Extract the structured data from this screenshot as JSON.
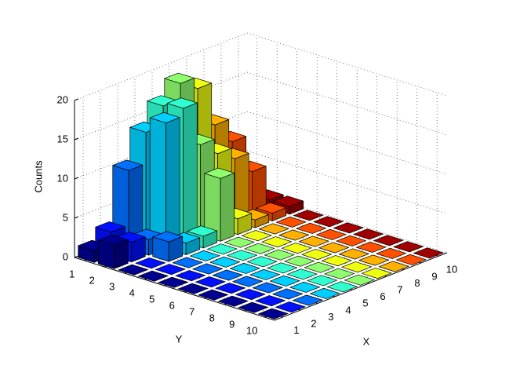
{
  "chart_data": {
    "type": "bar3",
    "xlabel": "X",
    "ylabel": "Y",
    "zlabel": "Counts",
    "xlim": [
      0.5,
      10.5
    ],
    "ylim": [
      0.5,
      10.5
    ],
    "zlim": [
      0,
      20
    ],
    "xticks": [
      1,
      2,
      3,
      4,
      5,
      6,
      7,
      8,
      9,
      10
    ],
    "yticks": [
      1,
      2,
      3,
      4,
      5,
      6,
      7,
      8,
      9,
      10
    ],
    "zticks": [
      0,
      5,
      10,
      15,
      20
    ],
    "grid": true,
    "colors": [
      "#000090",
      "#0010ff",
      "#0070ff",
      "#00d0ff",
      "#30ffcf",
      "#90ff6f",
      "#f0ff0f",
      "#ffb000",
      "#ff5000",
      "#a00000"
    ],
    "values": [
      [
        1.5,
        3,
        10,
        14,
        16.5,
        18.5,
        17,
        11.5,
        8.5,
        1.5
      ],
      [
        3,
        2.5,
        2,
        16,
        17,
        11.5,
        9.5,
        8,
        5.5,
        1
      ],
      [
        0,
        0,
        2.5,
        1.5,
        1.5,
        8,
        2,
        1,
        1,
        1
      ],
      [
        0,
        0,
        0,
        0,
        0,
        0,
        0,
        0,
        0,
        0
      ],
      [
        0,
        0,
        0,
        0,
        0,
        0,
        0,
        0,
        0,
        0
      ],
      [
        0,
        0,
        0,
        0,
        0,
        0,
        0,
        0,
        0,
        0
      ],
      [
        0,
        0,
        0,
        0,
        0,
        0,
        0,
        0,
        0,
        0
      ],
      [
        0,
        0,
        0,
        0,
        0,
        0,
        0,
        0,
        0,
        0
      ],
      [
        0,
        0,
        0,
        0,
        0,
        0,
        0,
        0,
        0,
        0
      ],
      [
        0,
        0,
        0,
        0,
        0,
        0,
        0,
        0,
        0,
        0
      ]
    ]
  }
}
